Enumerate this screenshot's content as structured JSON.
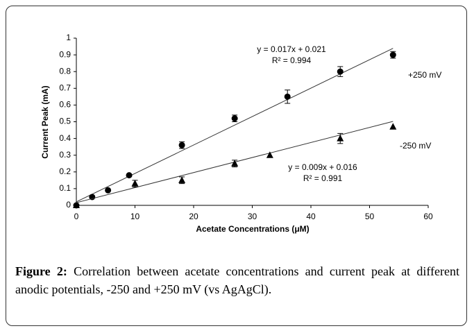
{
  "chart_data": {
    "type": "scatter",
    "xlabel": "Acetate Concentrations (μM)",
    "ylabel": "Current Peak (mA)",
    "xlim": [
      0,
      60
    ],
    "xticks": [
      0,
      10,
      20,
      30,
      40,
      50,
      60
    ],
    "ylim": [
      0,
      1
    ],
    "yticks": [
      0,
      0.1,
      0.2,
      0.3,
      0.4,
      0.5,
      0.6,
      0.7,
      0.8,
      0.9,
      1
    ],
    "grid": false,
    "series": [
      {
        "name": "+250 mV",
        "color": "#000000",
        "marker": "circle",
        "x": [
          0,
          2.7,
          5.4,
          9,
          18,
          27,
          36,
          45,
          54
        ],
        "values": [
          0,
          0.05,
          0.09,
          0.18,
          0.36,
          0.52,
          0.65,
          0.8,
          0.9
        ],
        "errors": [
          0,
          0,
          0,
          0,
          0.02,
          0.02,
          0.04,
          0.03,
          0.02
        ],
        "trendline": {
          "equation": "y = 0.017x + 0.021",
          "r2_label": "R² = 0.994",
          "slope": 0.017,
          "intercept": 0.021
        }
      },
      {
        "name": "-250 mV",
        "color": "#000000",
        "marker": "triangle",
        "x": [
          0,
          10,
          18,
          27,
          33,
          45,
          54
        ],
        "values": [
          0,
          0.13,
          0.15,
          0.25,
          0.3,
          0.4,
          0.47
        ],
        "errors": [
          0,
          0.02,
          0.02,
          0.02,
          0,
          0.03,
          0
        ],
        "trendline": {
          "equation": "y = 0.009x + 0.016",
          "r2_label": "R² = 0.991",
          "slope": 0.009,
          "intercept": 0.016
        }
      }
    ]
  },
  "caption": {
    "label": "Figure 2:",
    "text": "Correlation between acetate concentrations and current peak at different anodic potentials, -250 and +250 mV (vs AgAgCl)."
  }
}
